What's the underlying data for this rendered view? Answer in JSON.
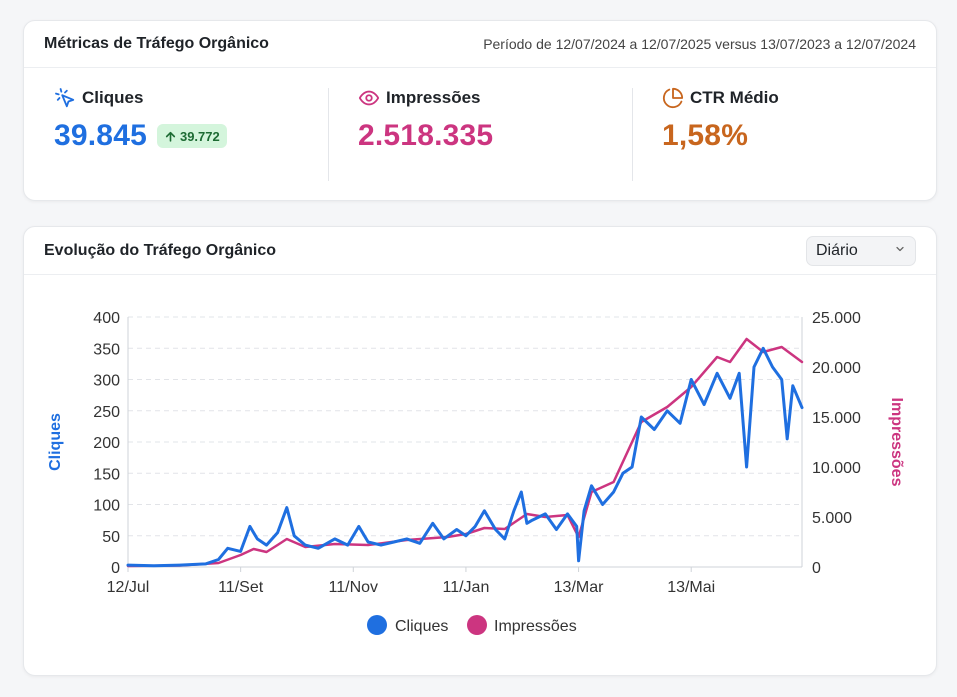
{
  "metrics_card": {
    "title": "Métricas de Tráfego Orgânico",
    "period": "Período de 12/07/2024 a 12/07/2025 versus 13/07/2023 a 12/07/2024"
  },
  "metrics": [
    {
      "label": "Cliques",
      "value": "39.845",
      "delta": "39.772",
      "icon": "cursor-click-icon",
      "color": "#1f6fe0"
    },
    {
      "label": "Impressões",
      "value": "2.518.335",
      "icon": "eye-icon",
      "color": "#cc3580"
    },
    {
      "label": "CTR Médio",
      "value": "1,58%",
      "icon": "pie-chart-icon",
      "color": "#c8661e"
    }
  ],
  "chart_card": {
    "title": "Evolução do Tráfego Orgânico",
    "granularity": "Diário",
    "granularity_icon": "chevron-down-icon"
  },
  "colors": {
    "clicks": "#1f6fe0",
    "impressions": "#cc3580",
    "delta_bg": "#d4f5dc",
    "delta_text": "#1d6b33"
  },
  "chart_data": {
    "type": "line",
    "x_ticks": [
      "12/Jul",
      "11/Set",
      "11/Nov",
      "11/Jan",
      "13/Mar",
      "13/Mai"
    ],
    "x_tick_dates": [
      "2024-07-12",
      "2024-09-11",
      "2024-11-11",
      "2025-01-11",
      "2025-03-13",
      "2025-05-13"
    ],
    "x_range": [
      "2024-07-12",
      "2025-07-12"
    ],
    "y_left": {
      "label": "Cliques",
      "ticks": [
        "0",
        "50",
        "100",
        "150",
        "200",
        "250",
        "300",
        "350",
        "400"
      ],
      "range": [
        0,
        400
      ]
    },
    "y_right": {
      "label": "Impressões",
      "ticks": [
        "0",
        "5.000",
        "10.000",
        "15.000",
        "20.000",
        "25.000"
      ],
      "range": [
        0,
        25000
      ]
    },
    "grid": true,
    "legend_position": "bottom",
    "legend": [
      "Cliques",
      "Impressões"
    ],
    "series": [
      {
        "name": "Cliques",
        "axis": "left",
        "color": "#1f6fe0",
        "points": [
          [
            "2024-07-12",
            3
          ],
          [
            "2024-07-26",
            2
          ],
          [
            "2024-08-09",
            3
          ],
          [
            "2024-08-23",
            5
          ],
          [
            "2024-08-30",
            12
          ],
          [
            "2024-09-04",
            30
          ],
          [
            "2024-09-11",
            25
          ],
          [
            "2024-09-16",
            65
          ],
          [
            "2024-09-20",
            45
          ],
          [
            "2024-09-25",
            35
          ],
          [
            "2024-10-01",
            55
          ],
          [
            "2024-10-06",
            95
          ],
          [
            "2024-10-10",
            50
          ],
          [
            "2024-10-16",
            35
          ],
          [
            "2024-10-23",
            30
          ],
          [
            "2024-11-01",
            45
          ],
          [
            "2024-11-08",
            35
          ],
          [
            "2024-11-14",
            65
          ],
          [
            "2024-11-19",
            40
          ],
          [
            "2024-11-26",
            35
          ],
          [
            "2024-12-03",
            40
          ],
          [
            "2024-12-10",
            45
          ],
          [
            "2024-12-17",
            38
          ],
          [
            "2024-12-24",
            70
          ],
          [
            "2024-12-30",
            45
          ],
          [
            "2025-01-06",
            60
          ],
          [
            "2025-01-11",
            50
          ],
          [
            "2025-01-16",
            65
          ],
          [
            "2025-01-21",
            90
          ],
          [
            "2025-01-27",
            60
          ],
          [
            "2025-02-01",
            45
          ],
          [
            "2025-02-06",
            90
          ],
          [
            "2025-02-10",
            120
          ],
          [
            "2025-02-13",
            70
          ],
          [
            "2025-02-16",
            75
          ],
          [
            "2025-02-23",
            85
          ],
          [
            "2025-03-01",
            60
          ],
          [
            "2025-03-07",
            85
          ],
          [
            "2025-03-12",
            65
          ],
          [
            "2025-03-13",
            10
          ],
          [
            "2025-03-16",
            90
          ],
          [
            "2025-03-20",
            130
          ],
          [
            "2025-03-26",
            100
          ],
          [
            "2025-04-01",
            120
          ],
          [
            "2025-04-06",
            150
          ],
          [
            "2025-04-11",
            160
          ],
          [
            "2025-04-16",
            240
          ],
          [
            "2025-04-23",
            220
          ],
          [
            "2025-04-30",
            250
          ],
          [
            "2025-05-07",
            230
          ],
          [
            "2025-05-13",
            300
          ],
          [
            "2025-05-20",
            260
          ],
          [
            "2025-05-27",
            310
          ],
          [
            "2025-06-03",
            270
          ],
          [
            "2025-06-08",
            310
          ],
          [
            "2025-06-12",
            160
          ],
          [
            "2025-06-16",
            320
          ],
          [
            "2025-06-21",
            350
          ],
          [
            "2025-06-26",
            320
          ],
          [
            "2025-07-01",
            300
          ],
          [
            "2025-07-04",
            205
          ],
          [
            "2025-07-07",
            290
          ],
          [
            "2025-07-12",
            255
          ]
        ]
      },
      {
        "name": "Impressões",
        "axis": "right",
        "color": "#cc3580",
        "points": [
          [
            "2024-07-12",
            100
          ],
          [
            "2024-08-09",
            150
          ],
          [
            "2024-08-30",
            400
          ],
          [
            "2024-09-11",
            1200
          ],
          [
            "2024-09-18",
            1800
          ],
          [
            "2024-09-25",
            1500
          ],
          [
            "2024-10-01",
            2200
          ],
          [
            "2024-10-06",
            2800
          ],
          [
            "2024-10-16",
            2000
          ],
          [
            "2024-11-01",
            2300
          ],
          [
            "2024-11-19",
            2200
          ],
          [
            "2024-12-10",
            2700
          ],
          [
            "2025-01-01",
            3000
          ],
          [
            "2025-01-11",
            3300
          ],
          [
            "2025-01-21",
            3900
          ],
          [
            "2025-02-01",
            3800
          ],
          [
            "2025-02-13",
            5300
          ],
          [
            "2025-02-23",
            5000
          ],
          [
            "2025-03-07",
            5200
          ],
          [
            "2025-03-13",
            3000
          ],
          [
            "2025-03-20",
            7500
          ],
          [
            "2025-04-01",
            8500
          ],
          [
            "2025-04-16",
            14500
          ],
          [
            "2025-04-30",
            16000
          ],
          [
            "2025-05-13",
            18000
          ],
          [
            "2025-05-27",
            21000
          ],
          [
            "2025-06-03",
            20500
          ],
          [
            "2025-06-12",
            22800
          ],
          [
            "2025-06-21",
            21500
          ],
          [
            "2025-07-01",
            22000
          ],
          [
            "2025-07-12",
            20500
          ]
        ]
      }
    ]
  }
}
